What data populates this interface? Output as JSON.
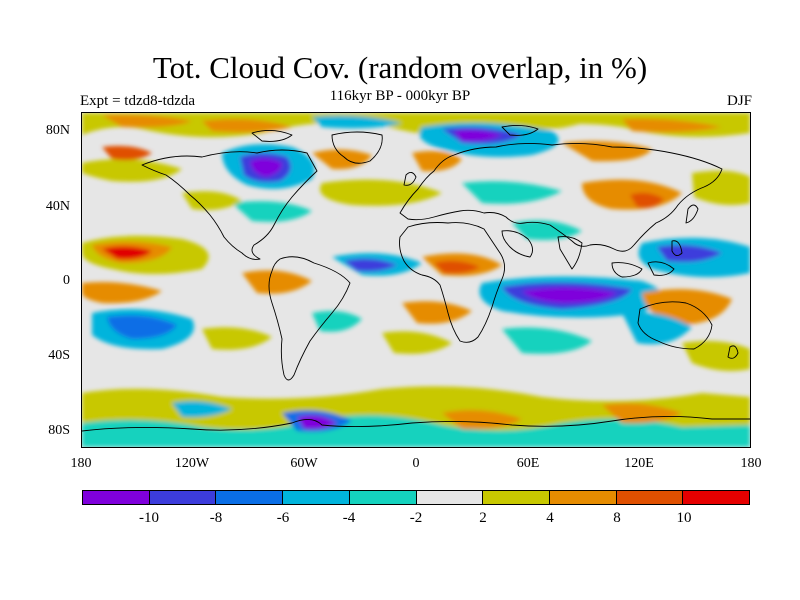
{
  "title": "Tot. Cloud Cov. (random overlap, in %)",
  "subtitle": "116kyr BP - 000kyr BP",
  "experiment": "Expt = tdzd8-tdzda",
  "season": "DJF",
  "map": {
    "lat_range": [
      -90,
      90
    ],
    "lon_range": [
      -180,
      180
    ],
    "background_color": "#e6e6e6",
    "lat_ticks": [
      "80N",
      "40N",
      "0",
      "40S",
      "80S"
    ],
    "lon_ticks": [
      "180",
      "120W",
      "60W",
      "0",
      "60E",
      "120E",
      "180"
    ]
  },
  "colorbar": {
    "colors": [
      "#7f00dc",
      "#3c3cdc",
      "#0a6ee6",
      "#00b4dc",
      "#14d2be",
      "#e6e6e6",
      "#c8c800",
      "#e68c00",
      "#e05000",
      "#e60000"
    ],
    "labels": [
      "-10",
      "-8",
      "-6",
      "-4",
      "-2",
      "2",
      "4",
      "8",
      "10"
    ]
  }
}
